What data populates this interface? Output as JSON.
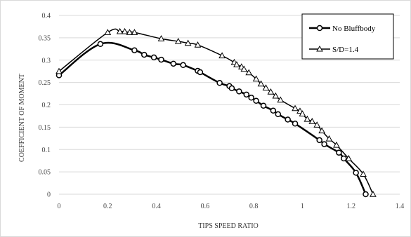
{
  "chart_data": {
    "type": "line",
    "xlabel": "TIPS SPEED RATIO",
    "ylabel": "COEFFICIENT OF MOMENT",
    "xlim": [
      0,
      1.4
    ],
    "ylim": [
      0,
      0.4
    ],
    "x_ticks": [
      "0",
      "0.2",
      "0.4",
      "0.6",
      "0.8",
      "1",
      "1.2",
      "1.4"
    ],
    "y_ticks": [
      "0",
      "0.05",
      "0.1",
      "0.15",
      "0.2",
      "0.25",
      "0.3",
      "0.35",
      "0.4"
    ],
    "grid": "horizontal",
    "legend_position": "top-right",
    "series": [
      {
        "name": "No Bluffbody",
        "marker": "circle",
        "color": "#000000",
        "x": [
          0,
          0.17,
          0.31,
          0.35,
          0.39,
          0.42,
          0.47,
          0.51,
          0.57,
          0.58,
          0.66,
          0.7,
          0.71,
          0.74,
          0.77,
          0.79,
          0.81,
          0.84,
          0.88,
          0.9,
          0.94,
          0.97,
          1.07,
          1.09,
          1.15,
          1.17,
          1.22,
          1.26
        ],
        "y": [
          0.266,
          0.336,
          0.322,
          0.312,
          0.306,
          0.301,
          0.292,
          0.289,
          0.276,
          0.273,
          0.249,
          0.242,
          0.237,
          0.23,
          0.223,
          0.216,
          0.209,
          0.198,
          0.187,
          0.179,
          0.167,
          0.158,
          0.121,
          0.112,
          0.093,
          0.08,
          0.048,
          0.0
        ]
      },
      {
        "name": "S/D=1.4",
        "marker": "triangle",
        "color": "#000000",
        "x": [
          0,
          0.2,
          0.25,
          0.27,
          0.29,
          0.31,
          0.42,
          0.49,
          0.53,
          0.57,
          0.67,
          0.72,
          0.73,
          0.75,
          0.76,
          0.78,
          0.81,
          0.83,
          0.85,
          0.87,
          0.89,
          0.91,
          0.97,
          0.99,
          1.0,
          1.02,
          1.04,
          1.06,
          1.08,
          1.11,
          1.14,
          1.19,
          1.25,
          1.29
        ],
        "y": [
          0.275,
          0.362,
          0.364,
          0.364,
          0.362,
          0.362,
          0.348,
          0.342,
          0.338,
          0.334,
          0.31,
          0.295,
          0.29,
          0.285,
          0.28,
          0.272,
          0.258,
          0.247,
          0.238,
          0.229,
          0.22,
          0.211,
          0.192,
          0.186,
          0.18,
          0.168,
          0.163,
          0.155,
          0.142,
          0.124,
          0.11,
          0.08,
          0.045,
          0.0
        ]
      }
    ]
  }
}
